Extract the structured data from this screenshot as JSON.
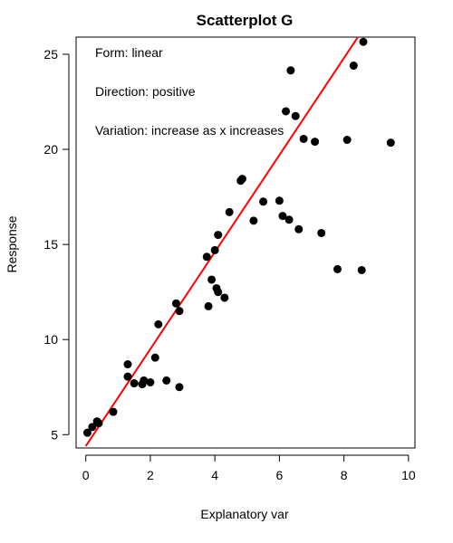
{
  "chart_data": {
    "type": "scatter",
    "title": "Scatterplot G",
    "xlabel": "Explanatory var",
    "ylabel": "Response",
    "xlim": [
      -0.3,
      10.2
    ],
    "ylim": [
      4.3,
      25.9
    ],
    "xticks": [
      0,
      2,
      4,
      6,
      8,
      10
    ],
    "yticks": [
      5,
      10,
      15,
      20,
      25
    ],
    "grid": false,
    "annotations": [
      "Form: linear",
      "Direction: positive",
      "Variation: increase as x increases"
    ],
    "fit_line": {
      "color": "#ff0000",
      "intercept": 4.4,
      "slope": 2.55
    },
    "point_color": "#000000",
    "x": [
      0.05,
      0.2,
      0.35,
      0.4,
      0.85,
      1.3,
      1.3,
      1.5,
      1.75,
      1.8,
      2.0,
      2.15,
      2.25,
      2.5,
      2.8,
      2.9,
      2.9,
      3.75,
      3.8,
      3.9,
      4.0,
      4.05,
      4.1,
      4.1,
      4.3,
      4.45,
      4.8,
      4.85,
      5.2,
      5.5,
      6.0,
      6.1,
      6.2,
      6.3,
      6.35,
      6.5,
      6.6,
      6.75,
      7.1,
      7.3,
      7.8,
      8.1,
      8.3,
      8.55,
      8.6,
      9.45
    ],
    "y": [
      5.1,
      5.4,
      5.7,
      5.6,
      6.2,
      8.05,
      8.7,
      7.7,
      7.65,
      7.85,
      7.75,
      9.05,
      10.8,
      7.85,
      11.9,
      11.5,
      7.5,
      14.35,
      11.75,
      13.15,
      14.7,
      12.7,
      12.5,
      15.5,
      12.2,
      16.7,
      18.35,
      18.45,
      16.25,
      17.25,
      17.3,
      16.5,
      22.0,
      16.3,
      24.15,
      21.75,
      15.8,
      20.55,
      20.4,
      15.6,
      13.7,
      20.5,
      24.4,
      13.65,
      25.65,
      20.35
    ]
  }
}
